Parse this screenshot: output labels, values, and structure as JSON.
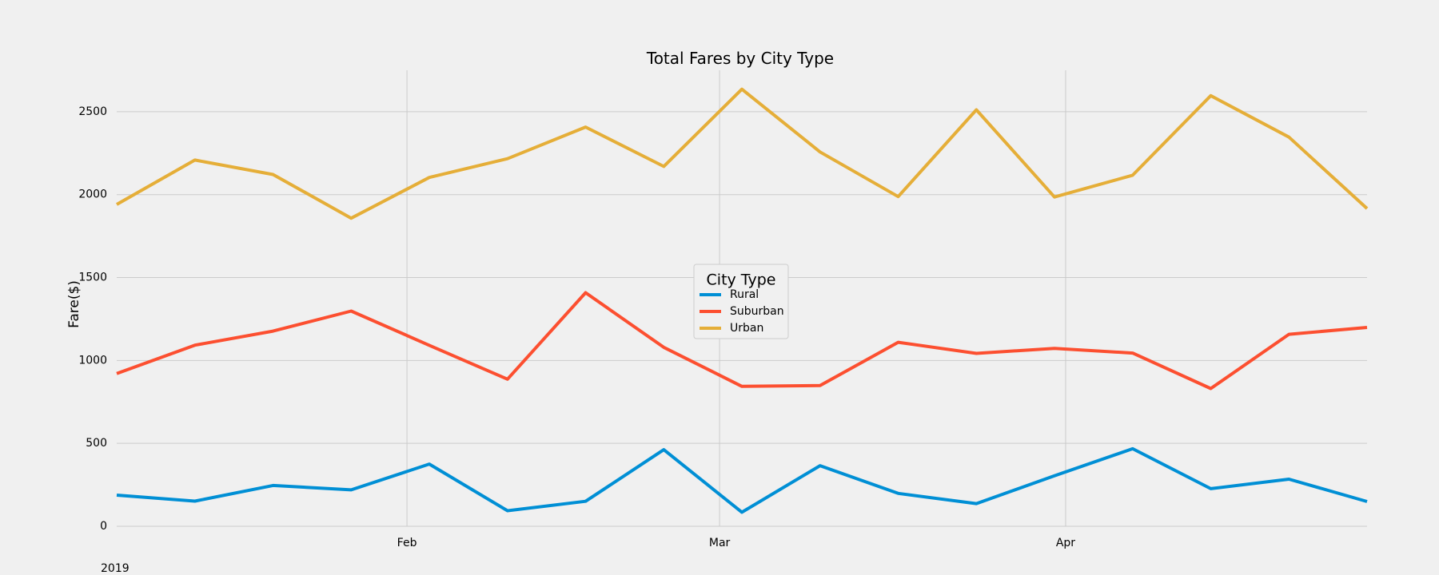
{
  "chart_data": {
    "type": "line",
    "title": "Total Fares by City Type",
    "xlabel": "",
    "ylabel": "Fare($)",
    "x": [
      "2019-01-06",
      "2019-01-13",
      "2019-01-20",
      "2019-01-27",
      "2019-02-03",
      "2019-02-10",
      "2019-02-17",
      "2019-02-24",
      "2019-03-03",
      "2019-03-10",
      "2019-03-17",
      "2019-03-24",
      "2019-03-31",
      "2019-04-07",
      "2019-04-14",
      "2019-04-21",
      "2019-04-28"
    ],
    "x_range": [
      "2019-01-06",
      "2019-04-28"
    ],
    "x_ticks": [
      {
        "date": "2019-02-01",
        "label": "Feb"
      },
      {
        "date": "2019-03-01",
        "label": "Mar"
      },
      {
        "date": "2019-04-01",
        "label": "Apr"
      }
    ],
    "x_year_label": "2019",
    "ylim": [
      0,
      2750
    ],
    "y_ticks": [
      0,
      500,
      1000,
      1500,
      2000,
      2500
    ],
    "grid": true,
    "legend": {
      "title": "City Type",
      "placement": "center"
    },
    "series": [
      {
        "name": "Rural",
        "color": "#008fd5",
        "values": [
          187.92,
          151.93,
          246.28,
          219.46,
          375.03,
          93.73,
          150.89,
          461.72,
          84.53,
          365.56,
          198.21,
          136.81,
          305.0,
          467.42,
          226.65,
          284.34,
          149.26
        ]
      },
      {
        "name": "Suburban",
        "color": "#fc4f30",
        "values": [
          921.18,
          1092.19,
          1176.92,
          1297.71,
          1091.14,
          887.31,
          1408.69,
          1079.07,
          844.01,
          848.57,
          1109.54,
          1042.91,
          1073.17,
          1044.53,
          831.02,
          1158.01,
          1199.4
        ]
      },
      {
        "name": "Urban",
        "color": "#e5ae38",
        "values": [
          1941.1,
          2208.63,
          2121.68,
          1858.26,
          2103.72,
          2217.0,
          2407.81,
          2170.02,
          2635.64,
          2257.51,
          1987.96,
          2511.77,
          1985.88,
          2117.22,
          2596.96,
          2346.71,
          1916.12
        ]
      }
    ]
  }
}
